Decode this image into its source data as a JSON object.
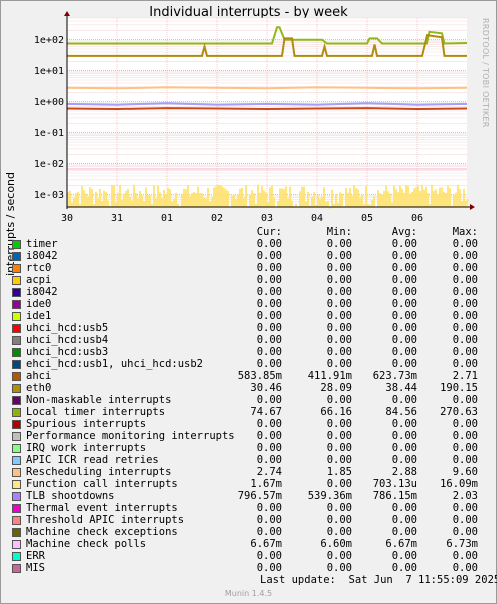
{
  "title": "Individual interrupts - by week",
  "side_text": "RRDTOOL / TOBI OETIKER",
  "footer": {
    "last_update": "Last update:  Sat Jun  7 11:55:09 2025",
    "version": "Munin 1.4.5"
  },
  "legend_headers": [
    "Cur:",
    "Min:",
    "Avg:",
    "Max:"
  ],
  "chart_data": {
    "type": "line",
    "title": "Individual interrupts - by week",
    "ylabel": "interrupts / second",
    "y_scale": "log",
    "ylim": [
      0.0004,
      500
    ],
    "yticks": [
      {
        "value": 100,
        "label": "1e+02"
      },
      {
        "value": 10,
        "label": "1e+01"
      },
      {
        "value": 1,
        "label": "1e+00"
      },
      {
        "value": 0.1,
        "label": "1e-01"
      },
      {
        "value": 0.01,
        "label": "1e-02"
      },
      {
        "value": 0.001,
        "label": "1e-03"
      }
    ],
    "x_domain": [
      0,
      8
    ],
    "xticks": [
      {
        "value": 0,
        "label": "30"
      },
      {
        "value": 1,
        "label": "31"
      },
      {
        "value": 2,
        "label": "01"
      },
      {
        "value": 3,
        "label": "02"
      },
      {
        "value": 4,
        "label": "03"
      },
      {
        "value": 5,
        "label": "04"
      },
      {
        "value": 6,
        "label": "05"
      },
      {
        "value": 7,
        "label": "06"
      }
    ],
    "grid": true,
    "series": [
      {
        "name": "Local timer interrupts",
        "color": "#8fb81b",
        "cur": 74.67,
        "min": 66.16,
        "avg": 84.56,
        "max": 270.63,
        "points": [
          [
            0,
            75
          ],
          [
            4.1,
            75
          ],
          [
            4.2,
            250
          ],
          [
            4.25,
            250
          ],
          [
            4.35,
            100
          ],
          [
            5.1,
            100
          ],
          [
            5.2,
            75
          ],
          [
            6.0,
            75
          ],
          [
            6.05,
            110
          ],
          [
            6.2,
            110
          ],
          [
            6.3,
            75
          ],
          [
            7.2,
            75
          ],
          [
            7.25,
            180
          ],
          [
            7.5,
            160
          ],
          [
            7.55,
            75
          ],
          [
            8,
            78
          ]
        ]
      },
      {
        "name": "eth0",
        "color": "#b08b0f",
        "cur": 30.46,
        "min": 28.09,
        "avg": 38.44,
        "max": 190.15,
        "points": [
          [
            0,
            30
          ],
          [
            2.7,
            30
          ],
          [
            2.75,
            60
          ],
          [
            2.8,
            30
          ],
          [
            4.3,
            30
          ],
          [
            4.35,
            110
          ],
          [
            4.5,
            110
          ],
          [
            4.55,
            30
          ],
          [
            5.1,
            30
          ],
          [
            5.15,
            60
          ],
          [
            5.2,
            30
          ],
          [
            6.1,
            30
          ],
          [
            6.15,
            70
          ],
          [
            6.2,
            30
          ],
          [
            7.1,
            30
          ],
          [
            7.2,
            140
          ],
          [
            7.5,
            120
          ],
          [
            7.55,
            30
          ],
          [
            8,
            30
          ]
        ]
      },
      {
        "name": "Rescheduling interrupts",
        "color": "#ffc080",
        "cur": 2.74,
        "min": 1.85,
        "avg": 2.88,
        "max": 9.6,
        "points": [
          [
            0,
            2.8
          ],
          [
            1,
            2.7
          ],
          [
            2,
            2.9
          ],
          [
            3,
            2.8
          ],
          [
            4,
            2.7
          ],
          [
            5,
            2.9
          ],
          [
            6,
            2.8
          ],
          [
            7,
            2.7
          ],
          [
            8,
            2.8
          ]
        ]
      },
      {
        "name": "TLB shootdowns",
        "color": "#a0a0ff",
        "cur": 0.79657,
        "min": 0.53936,
        "avg": 0.78615,
        "max": 2.03,
        "points": [
          [
            0,
            0.85
          ],
          [
            1,
            0.8
          ],
          [
            2,
            0.9
          ],
          [
            3,
            0.8
          ],
          [
            4,
            0.85
          ],
          [
            5,
            0.8
          ],
          [
            6,
            0.9
          ],
          [
            7,
            0.8
          ],
          [
            8,
            0.85
          ]
        ]
      },
      {
        "name": "ahci",
        "color": "#c84a1a",
        "cur": 0.58385,
        "min": 0.41191,
        "avg": 0.62373,
        "max": 2.71,
        "points": [
          [
            0,
            0.6
          ],
          [
            1,
            0.58
          ],
          [
            2,
            0.62
          ],
          [
            3,
            0.6
          ],
          [
            4,
            0.58
          ],
          [
            5,
            0.6
          ],
          [
            6,
            0.62
          ],
          [
            7,
            0.58
          ],
          [
            8,
            0.6
          ]
        ]
      },
      {
        "name": "Function call interrupts",
        "color": "#ffe066",
        "cur": 0.00167,
        "min": 0,
        "avg": 0.000703,
        "max": 0.01609,
        "area": true
      }
    ]
  },
  "legend": [
    {
      "label": "timer",
      "color": "#00cc00",
      "cur": "0.00",
      "min": "0.00",
      "avg": "0.00",
      "max": "0.00"
    },
    {
      "label": "i8042",
      "color": "#0066b3",
      "cur": "0.00",
      "min": "0.00",
      "avg": "0.00",
      "max": "0.00"
    },
    {
      "label": "rtc0",
      "color": "#ff8000",
      "cur": "0.00",
      "min": "0.00",
      "avg": "0.00",
      "max": "0.00"
    },
    {
      "label": "acpi",
      "color": "#ffcc00",
      "cur": "0.00",
      "min": "0.00",
      "avg": "0.00",
      "max": "0.00"
    },
    {
      "label": "i8042",
      "color": "#330099",
      "cur": "0.00",
      "min": "0.00",
      "avg": "0.00",
      "max": "0.00"
    },
    {
      "label": "ide0",
      "color": "#990099",
      "cur": "0.00",
      "min": "0.00",
      "avg": "0.00",
      "max": "0.00"
    },
    {
      "label": "ide1",
      "color": "#ccff00",
      "cur": "0.00",
      "min": "0.00",
      "avg": "0.00",
      "max": "0.00"
    },
    {
      "label": "uhci_hcd:usb5",
      "color": "#ff0000",
      "cur": "0.00",
      "min": "0.00",
      "avg": "0.00",
      "max": "0.00"
    },
    {
      "label": "uhci_hcd:usb4",
      "color": "#808080",
      "cur": "0.00",
      "min": "0.00",
      "avg": "0.00",
      "max": "0.00"
    },
    {
      "label": "uhci_hcd:usb3",
      "color": "#008f00",
      "cur": "0.00",
      "min": "0.00",
      "avg": "0.00",
      "max": "0.00"
    },
    {
      "label": "ehci_hcd:usb1, uhci_hcd:usb2",
      "color": "#00487d",
      "cur": "0.00",
      "min": "0.00",
      "avg": "0.00",
      "max": "0.00"
    },
    {
      "label": "ahci",
      "color": "#b35a00",
      "cur": "583.85m",
      "min": "411.91m",
      "avg": "623.73m",
      "max": "2.71"
    },
    {
      "label": "eth0",
      "color": "#b38f00",
      "cur": "30.46",
      "min": "28.09",
      "avg": "38.44",
      "max": "190.15"
    },
    {
      "label": "Non-maskable interrupts",
      "color": "#6b006b",
      "cur": "0.00",
      "min": "0.00",
      "avg": "0.00",
      "max": "0.00"
    },
    {
      "label": "Local timer interrupts",
      "color": "#8fb300",
      "cur": "74.67",
      "min": "66.16",
      "avg": "84.56",
      "max": "270.63"
    },
    {
      "label": "Spurious interrupts",
      "color": "#b30000",
      "cur": "0.00",
      "min": "0.00",
      "avg": "0.00",
      "max": "0.00"
    },
    {
      "label": "Performance monitoring interrupts",
      "color": "#bebebe",
      "cur": "0.00",
      "min": "0.00",
      "avg": "0.00",
      "max": "0.00"
    },
    {
      "label": "IRQ work interrupts",
      "color": "#80ff80",
      "cur": "0.00",
      "min": "0.00",
      "avg": "0.00",
      "max": "0.00"
    },
    {
      "label": "APIC ICR read retries",
      "color": "#80c9ff",
      "cur": "0.00",
      "min": "0.00",
      "avg": "0.00",
      "max": "0.00"
    },
    {
      "label": "Rescheduling interrupts",
      "color": "#ffc080",
      "cur": "2.74",
      "min": "1.85",
      "avg": "2.88",
      "max": "9.60"
    },
    {
      "label": "Function call interrupts",
      "color": "#ffe680",
      "cur": "1.67m",
      "min": "0.00",
      "avg": "703.13u",
      "max": "16.09m"
    },
    {
      "label": "TLB shootdowns",
      "color": "#aa80ff",
      "cur": "796.57m",
      "min": "539.36m",
      "avg": "786.15m",
      "max": "2.03"
    },
    {
      "label": "Thermal event interrupts",
      "color": "#ee00cc",
      "cur": "0.00",
      "min": "0.00",
      "avg": "0.00",
      "max": "0.00"
    },
    {
      "label": "Threshold APIC interrupts",
      "color": "#ff8080",
      "cur": "0.00",
      "min": "0.00",
      "avg": "0.00",
      "max": "0.00"
    },
    {
      "label": "Machine check exceptions",
      "color": "#666600",
      "cur": "0.00",
      "min": "0.00",
      "avg": "0.00",
      "max": "0.00"
    },
    {
      "label": "Machine check polls",
      "color": "#ffbfff",
      "cur": "6.67m",
      "min": "6.60m",
      "avg": "6.67m",
      "max": "6.73m"
    },
    {
      "label": "ERR",
      "color": "#00ffcc",
      "cur": "0.00",
      "min": "0.00",
      "avg": "0.00",
      "max": "0.00"
    },
    {
      "label": "MIS",
      "color": "#cc6699",
      "cur": "0.00",
      "min": "0.00",
      "avg": "0.00",
      "max": "0.00"
    }
  ]
}
